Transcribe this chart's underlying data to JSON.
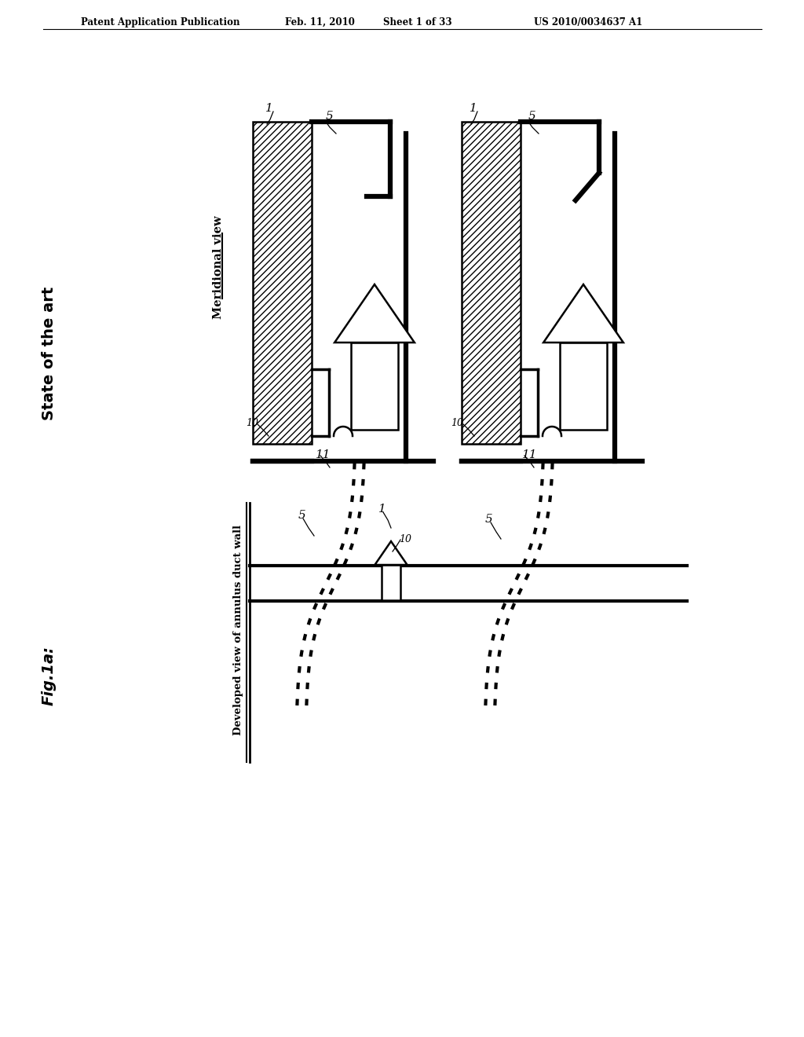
{
  "bg_color": "#ffffff",
  "header_text": "Patent Application Publication",
  "header_date": "Feb. 11, 2010",
  "header_sheet": "Sheet 1 of 33",
  "header_patent": "US 2010/0034637 A1",
  "fig_label": "Fig.1a:",
  "state_label": "State of the art",
  "meridional_label": "Meridional view",
  "developed_label": "Developed view of annulus duct wall"
}
